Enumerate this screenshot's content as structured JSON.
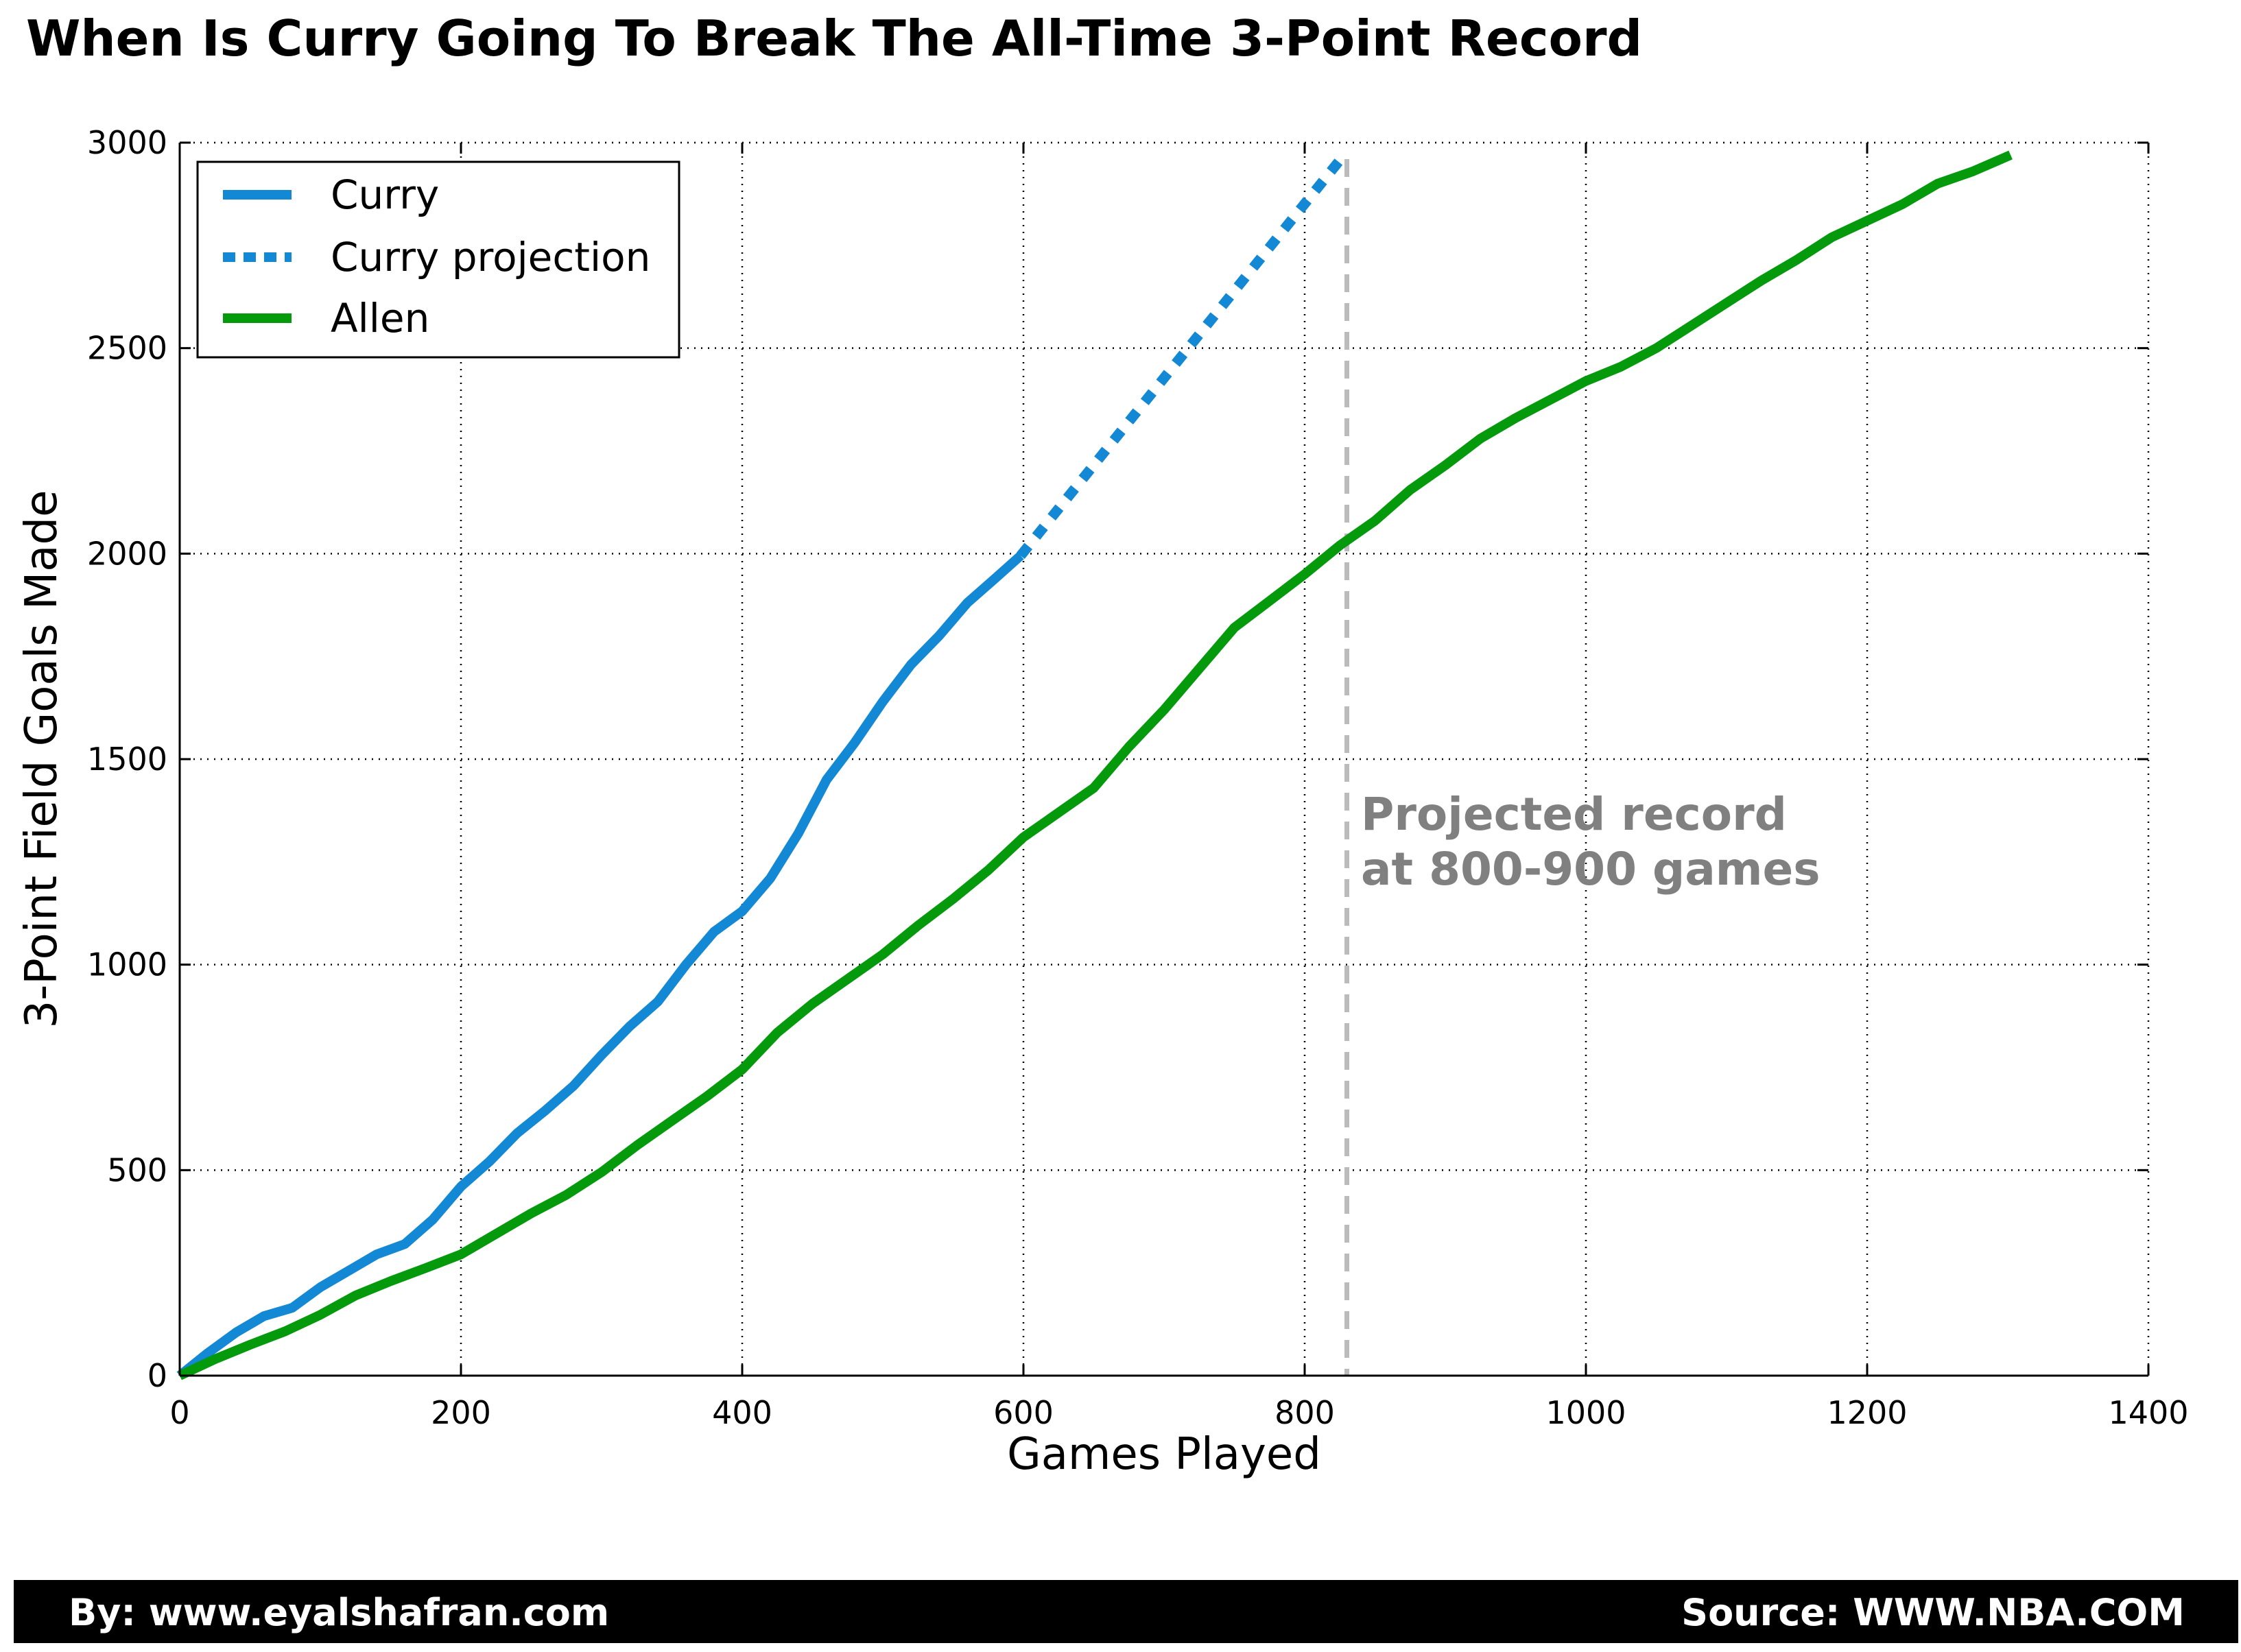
{
  "chart_data": {
    "type": "line",
    "title": "When Is Curry Going To Break The All-Time 3-Point Record",
    "xlabel": "Games Played",
    "ylabel": "3-Point Field Goals Made",
    "xlim": [
      0,
      1400
    ],
    "ylim": [
      0,
      3000
    ],
    "xticks": [
      0,
      200,
      400,
      600,
      800,
      1000,
      1200,
      1400
    ],
    "yticks": [
      0,
      500,
      1000,
      1500,
      2000,
      2500,
      3000
    ],
    "grid": true,
    "grid_style": "dotted",
    "legend_position": "top-left",
    "series": [
      {
        "name": "Curry",
        "color": "#1388d4",
        "style": "solid",
        "x": [
          0,
          20,
          40,
          60,
          80,
          100,
          120,
          140,
          160,
          180,
          200,
          220,
          240,
          260,
          280,
          300,
          320,
          340,
          360,
          380,
          400,
          420,
          440,
          460,
          480,
          500,
          520,
          540,
          560,
          580,
          598
        ],
        "y": [
          0,
          55,
          105,
          145,
          165,
          215,
          255,
          295,
          320,
          380,
          460,
          520,
          590,
          645,
          705,
          780,
          850,
          910,
          1000,
          1080,
          1130,
          1210,
          1320,
          1450,
          1540,
          1640,
          1730,
          1800,
          1880,
          1940,
          1995
        ]
      },
      {
        "name": "Curry projection",
        "color": "#1388d4",
        "style": "dotted",
        "x": [
          598,
          828
        ],
        "y": [
          1995,
          2970
        ]
      },
      {
        "name": "Allen",
        "color": "#049a0c",
        "style": "solid",
        "x": [
          0,
          25,
          50,
          75,
          100,
          125,
          150,
          175,
          200,
          225,
          250,
          275,
          300,
          325,
          350,
          375,
          400,
          425,
          450,
          475,
          500,
          525,
          550,
          575,
          600,
          625,
          650,
          675,
          700,
          725,
          750,
          775,
          800,
          825,
          850,
          875,
          900,
          925,
          950,
          975,
          1000,
          1025,
          1050,
          1075,
          1100,
          1125,
          1150,
          1175,
          1200,
          1225,
          1250,
          1275,
          1302
        ],
        "y": [
          0,
          40,
          75,
          108,
          148,
          195,
          230,
          262,
          295,
          345,
          395,
          440,
          495,
          560,
          620,
          680,
          745,
          835,
          905,
          965,
          1025,
          1095,
          1160,
          1230,
          1310,
          1370,
          1430,
          1530,
          1620,
          1720,
          1820,
          1885,
          1950,
          2020,
          2080,
          2155,
          2215,
          2280,
          2330,
          2375,
          2420,
          2455,
          2500,
          2555,
          2610,
          2665,
          2715,
          2770,
          2810,
          2850,
          2900,
          2930,
          2970
        ]
      }
    ],
    "annotations": [
      {
        "text_line1": "Projected record",
        "text_line2": "at 800-900 games",
        "color": "#808080"
      }
    ],
    "reference_line": {
      "x": 830,
      "style": "dashed",
      "color": "#bbbbbb"
    }
  },
  "footer": {
    "left": "By: www.eyalshafran.com",
    "right": "Source: WWW.NBA.COM"
  }
}
